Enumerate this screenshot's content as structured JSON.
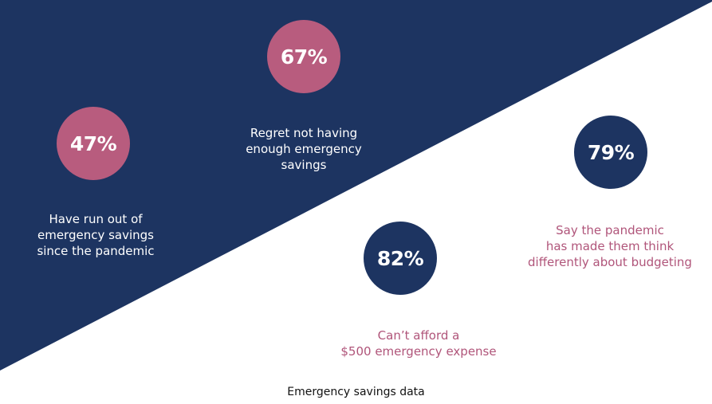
{
  "colors": {
    "navy": "#1d3461",
    "pink": "#b85c7e",
    "pink_text": "#b0557a"
  },
  "stats": [
    {
      "value": "47%",
      "lines": [
        "Have run out of",
        "emergency savings",
        "since the pandemic"
      ]
    },
    {
      "value": "67%",
      "lines": [
        "Regret not having",
        "enough emergency",
        "savings"
      ]
    },
    {
      "value": "82%",
      "lines": [
        "Can’t afford a",
        "$500 emergency expense"
      ]
    },
    {
      "value": "79%",
      "lines": [
        "Say the pandemic",
        "has made them think",
        "differently about budgeting"
      ]
    }
  ],
  "caption": "Emergency savings data"
}
